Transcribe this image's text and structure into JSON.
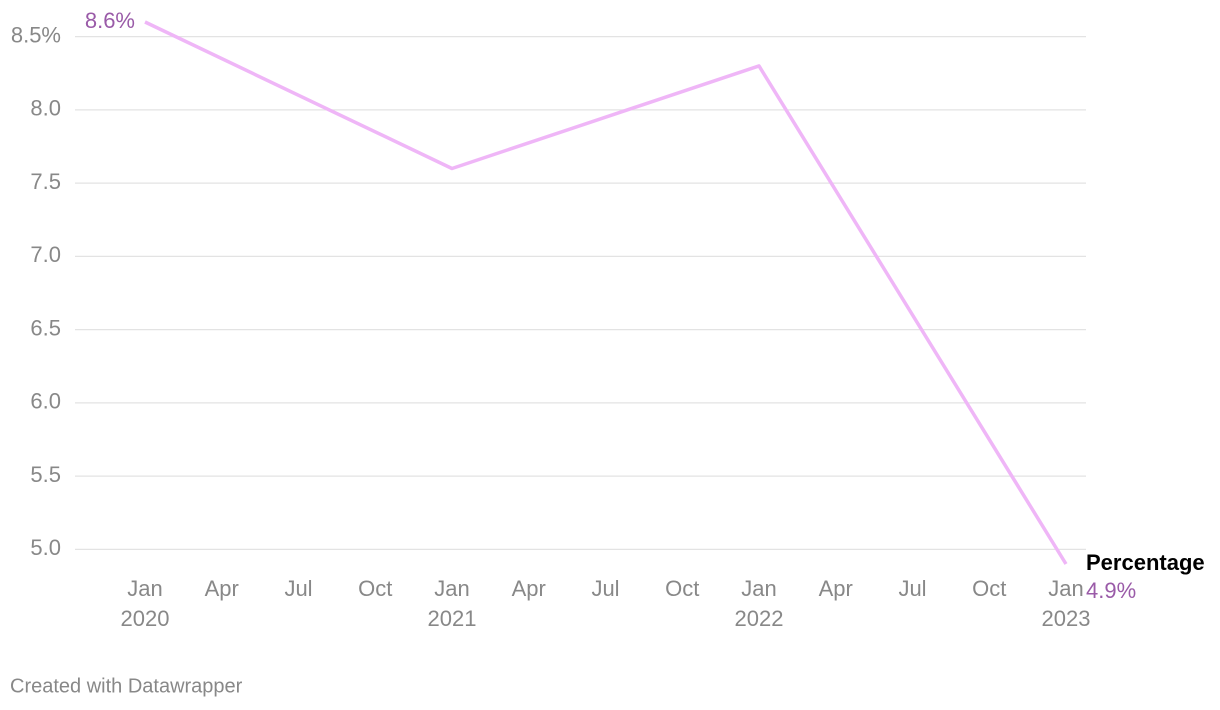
{
  "chart_data": {
    "type": "line",
    "x": [
      "2020-01",
      "2021-01",
      "2022-01",
      "2023-01"
    ],
    "xlim": [
      "2020-01",
      "2023-01"
    ],
    "xticks": [
      {
        "value": "2020-01",
        "label": "Jan",
        "sublabel": "2020"
      },
      {
        "value": "2020-04",
        "label": "Apr"
      },
      {
        "value": "2020-07",
        "label": "Jul"
      },
      {
        "value": "2020-10",
        "label": "Oct"
      },
      {
        "value": "2021-01",
        "label": "Jan",
        "sublabel": "2021"
      },
      {
        "value": "2021-04",
        "label": "Apr"
      },
      {
        "value": "2021-07",
        "label": "Jul"
      },
      {
        "value": "2021-10",
        "label": "Oct"
      },
      {
        "value": "2022-01",
        "label": "Jan",
        "sublabel": "2022"
      },
      {
        "value": "2022-04",
        "label": "Apr"
      },
      {
        "value": "2022-07",
        "label": "Jul"
      },
      {
        "value": "2022-10",
        "label": "Oct"
      },
      {
        "value": "2023-01",
        "label": "Jan",
        "sublabel": "2023"
      }
    ],
    "ylim": [
      4.9,
      8.6
    ],
    "yticks": [
      {
        "value": 5,
        "label": "5.0"
      },
      {
        "value": 5.5,
        "label": "5.5"
      },
      {
        "value": 6,
        "label": "6.0"
      },
      {
        "value": 6.5,
        "label": "6.5"
      },
      {
        "value": 7,
        "label": "7.0"
      },
      {
        "value": 7.5,
        "label": "7.5"
      },
      {
        "value": 8,
        "label": "8.0"
      },
      {
        "value": 8.5,
        "label": "8.5%"
      }
    ],
    "grid": true,
    "series": [
      {
        "name": "Percentage",
        "color": "#efb6f7",
        "label_color": "#9a5ba8",
        "values": [
          8.6,
          7.6,
          8.3,
          4.9
        ],
        "value_labels": [
          "8.6%",
          null,
          null,
          "4.9%"
        ]
      }
    ],
    "footer": "Created with Datawrapper"
  }
}
